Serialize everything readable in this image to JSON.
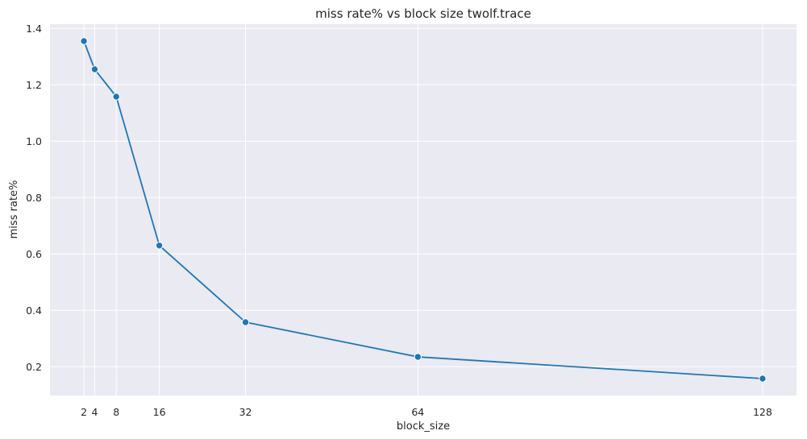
{
  "chart_data": {
    "type": "line",
    "title": "miss rate% vs block size twolf.trace",
    "xlabel": "block_size",
    "ylabel": "miss rate%",
    "x": [
      2,
      4,
      8,
      16,
      32,
      64,
      128
    ],
    "series": [
      {
        "values": [
          1.355,
          1.255,
          1.158,
          0.63,
          0.358,
          0.235,
          0.158
        ]
      }
    ],
    "x_ticks": [
      2,
      4,
      8,
      16,
      32,
      64,
      128
    ],
    "y_ticks": [
      0.2,
      0.4,
      0.6,
      0.8,
      1.0,
      1.2,
      1.4
    ],
    "y_tick_labels": [
      "0.2",
      "0.4",
      "0.6",
      "0.8",
      "1.0",
      "1.2",
      "1.4"
    ],
    "xlim": [
      -4.3,
      134.3
    ],
    "ylim": [
      0.098,
      1.415
    ],
    "grid": true,
    "marker": "circle",
    "line_color": "#1f77b4",
    "background_color": "#eaeaf2",
    "grid_color": "#ffffff"
  }
}
